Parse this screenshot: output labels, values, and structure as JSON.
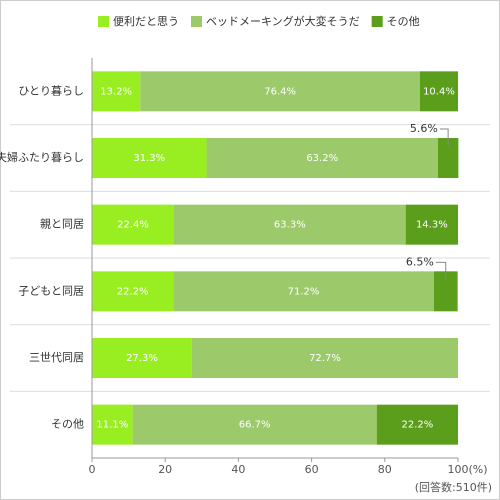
{
  "chart_data": {
    "type": "stacked-barh",
    "categories": [
      "ひとり暮らし",
      "夫婦ふたり暮らし",
      "親と同居",
      "子どもと同居",
      "三世代同居",
      "その他"
    ],
    "series": [
      {
        "name": "便利だと思う",
        "color": "#99ee22",
        "values": [
          13.2,
          31.3,
          22.4,
          22.2,
          27.3,
          11.1
        ],
        "value_labels": [
          "13.2%",
          "31.3%",
          "22.4%",
          "22.2%",
          "27.3%",
          "11.1%"
        ]
      },
      {
        "name": "ベッドメーキングが大変そうだ",
        "color": "#9cc96a",
        "values": [
          76.4,
          63.2,
          63.3,
          71.2,
          72.7,
          66.7
        ],
        "value_labels": [
          "76.4%",
          "63.2%",
          "63.3%",
          "71.2%",
          "72.7%",
          "66.7%"
        ]
      },
      {
        "name": "その他",
        "color": "#5a9e1c",
        "values": [
          10.4,
          5.6,
          14.3,
          6.5,
          null,
          22.2
        ],
        "value_labels": [
          "10.4%",
          "5.6%",
          "14.3%",
          "6.5%",
          null,
          "22.2%"
        ]
      }
    ],
    "xlim": [
      0,
      100
    ],
    "xticks": [
      0,
      20,
      40,
      60,
      80,
      100
    ],
    "x_unit": "(%)",
    "note": "(回答数:510件)",
    "legend": "top"
  }
}
